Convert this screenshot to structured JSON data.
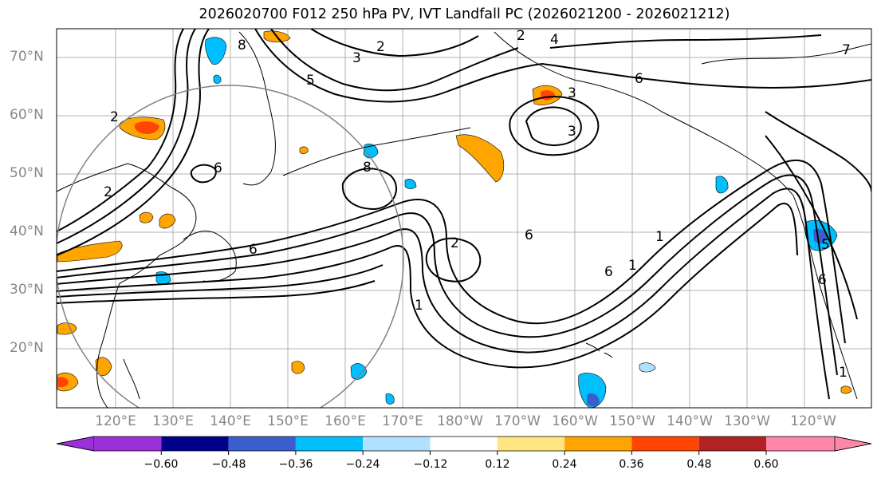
{
  "title": "2026020700 F012 250 hPa PV, IVT Landfall PC (2026021200 - 2026021212)",
  "map": {
    "lat_labels": [
      "70°N",
      "60°N",
      "50°N",
      "40°N",
      "30°N",
      "20°N"
    ],
    "lon_labels": [
      "120°E",
      "130°E",
      "140°E",
      "150°E",
      "160°E",
      "170°E",
      "180°W",
      "170°W",
      "160°W",
      "150°W",
      "140°W",
      "130°W",
      "120°W"
    ],
    "contour_labels": [
      "2",
      "2",
      "2",
      "2",
      "3",
      "3",
      "3",
      "4",
      "5",
      "6",
      "6",
      "6",
      "6",
      "6",
      "6",
      "7",
      "8",
      "8",
      "1",
      "1",
      "1",
      "1",
      "2",
      "5"
    ]
  },
  "colorbar": {
    "ticks": [
      "−0.60",
      "−0.48",
      "−0.36",
      "−0.24",
      "−0.12",
      "0.12",
      "0.24",
      "0.36",
      "0.48",
      "0.60"
    ],
    "colors": [
      "#9b30d9",
      "#00008b",
      "#3a5fcd",
      "#00bfff",
      "#b0e2ff",
      "#ffffff",
      "#ffe680",
      "#ffa500",
      "#ff4500",
      "#b22222",
      "#ff88aa"
    ],
    "extend_low": "#9b30d9",
    "extend_high": "#ff88aa"
  },
  "colors": {
    "grid": "#b0b0b0",
    "contour": "#000000",
    "coast": "#000000",
    "circle": "#808080"
  }
}
